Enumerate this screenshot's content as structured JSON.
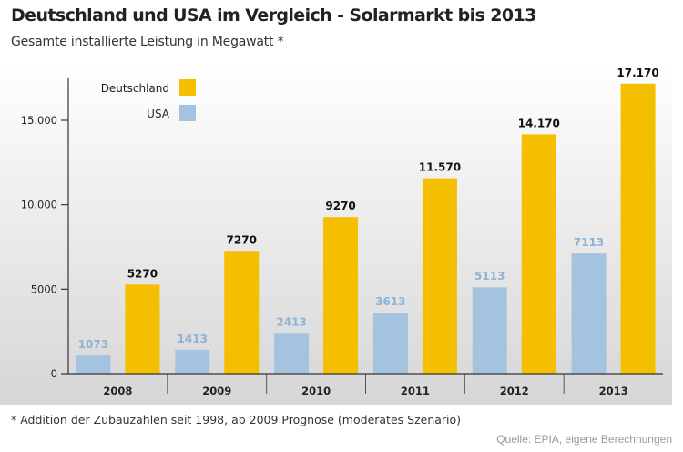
{
  "title": "Deutschland und USA im Vergleich - Solarmarkt bis 2013",
  "subtitle": "Gesamte installierte Leistung in Megawatt *",
  "footnote": "* Addition der Zubauzahlen seit 1998, ab 2009 Prognose (moderates Szenario)",
  "source": "Quelle: EPIA, eigene Berechnungen",
  "colors": {
    "germany": "#f3bf00",
    "usa": "#a4c3df",
    "usa_label": "#8fb2d3",
    "background_gradient_start": "#ffffff",
    "background_gradient_end": "#d6d6d6"
  },
  "chart_data": {
    "type": "bar",
    "categories": [
      "2008",
      "2009",
      "2010",
      "2011",
      "2012",
      "2013"
    ],
    "series": [
      {
        "name": "USA",
        "values": [
          1073,
          1413,
          2413,
          3613,
          5113,
          7113
        ],
        "labels": [
          "1073",
          "1413",
          "2413",
          "3613",
          "5113",
          "7113"
        ]
      },
      {
        "name": "Deutschland",
        "values": [
          5270,
          7270,
          9270,
          11570,
          14170,
          17170
        ],
        "labels": [
          "5270",
          "7270",
          "9270",
          "11.570",
          "14.170",
          "17.170"
        ]
      }
    ],
    "y_ticks": [
      0,
      5000,
      10000,
      15000
    ],
    "y_tick_labels": [
      "0",
      "5000",
      "10.000",
      "15.000"
    ],
    "ylim": [
      0,
      17500
    ],
    "legend": [
      "Deutschland",
      "USA"
    ],
    "legend_position": "top-left",
    "grid": false
  }
}
